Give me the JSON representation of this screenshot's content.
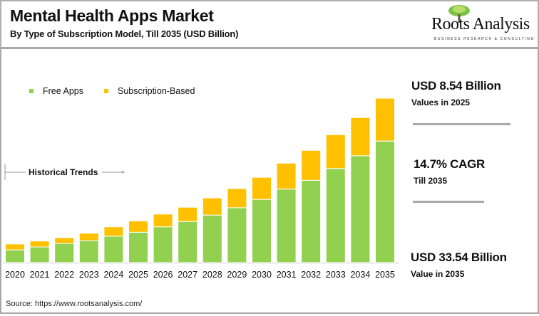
{
  "header": {
    "title": "Mental Health Apps Market",
    "subtitle": "By Type of Subscription Model, Till 2035 (USD Billion)",
    "logo": {
      "name": "Roots Analysis",
      "tagline": "BUSINESS RESEARCH & CONSULTING"
    }
  },
  "annotation": {
    "historical_trends": "Historical Trends"
  },
  "kpis": [
    {
      "value": "USD 8.54 Billion",
      "label": "Values in 2025"
    },
    {
      "value": "14.7% CAGR",
      "label": "Till 2035"
    },
    {
      "value": "USD 33.54 Billion",
      "label": "Value in 2035"
    }
  ],
  "source": "Source: https://www.rootsanalysis.com/",
  "chart_data": {
    "type": "bar",
    "stacked": true,
    "title": "Mental Health Apps Market",
    "xlabel": "",
    "ylabel": "",
    "ylim": [
      0,
      33.54
    ],
    "grid": false,
    "legend_position": "top-left",
    "categories": [
      "2020",
      "2021",
      "2022",
      "2023",
      "2024",
      "2025",
      "2026",
      "2027",
      "2028",
      "2029",
      "2030",
      "2031",
      "2032",
      "2033",
      "2034",
      "2035"
    ],
    "series": [
      {
        "name": "Free Apps",
        "color": "#92d050",
        "values": [
          2.6,
          3.2,
          3.9,
          4.5,
          5.4,
          6.2,
          7.3,
          8.4,
          9.7,
          11.2,
          12.9,
          15.0,
          16.8,
          19.2,
          21.8,
          24.8
        ]
      },
      {
        "name": "Subscription-Based",
        "color": "#ffc000",
        "values": [
          1.2,
          1.2,
          1.2,
          1.5,
          1.9,
          2.3,
          2.6,
          2.9,
          3.5,
          3.9,
          4.5,
          5.3,
          6.1,
          6.9,
          7.8,
          8.74
        ]
      }
    ]
  }
}
